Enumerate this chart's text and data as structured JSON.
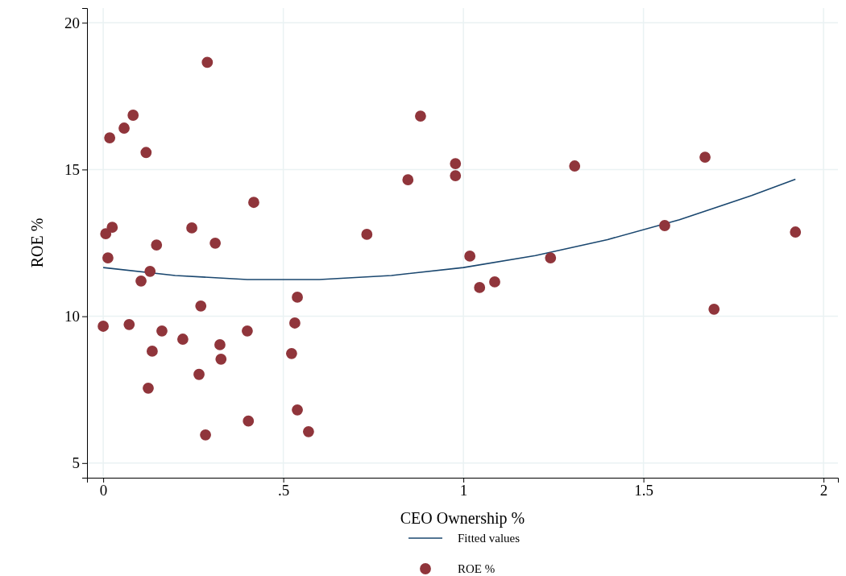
{
  "chart_data": {
    "type": "scatter",
    "xlabel": "CEO Ownership %",
    "ylabel": "ROE %",
    "xlim": [
      -0.045,
      2.04
    ],
    "ylim": [
      4.5,
      20.5
    ],
    "xticks": [
      0,
      {
        "value": 0.5,
        "label": ".5"
      },
      1,
      1.5,
      2
    ],
    "yticks": [
      5,
      10,
      15,
      20
    ],
    "grid": true,
    "legend": "bottom",
    "marker": "circle",
    "series": [
      {
        "name": "Fitted values",
        "type": "line",
        "color": "#1a476f",
        "line_style": "solid",
        "marker": "none",
        "x": [
          0,
          0.2,
          0.4,
          0.6,
          0.8,
          1.0,
          1.2,
          1.4,
          1.6,
          1.8,
          1.922
        ],
        "values": [
          11.66,
          11.39,
          11.25,
          11.25,
          11.39,
          11.66,
          12.07,
          12.61,
          13.29,
          14.11,
          14.67
        ]
      },
      {
        "name": "ROE %",
        "color": "#90353b",
        "x": [
          0,
          0.007,
          0.013,
          0.018,
          0.025,
          0.058,
          0.072,
          0.083,
          0.105,
          0.119,
          0.125,
          0.13,
          0.136,
          0.148,
          0.163,
          0.221,
          0.246,
          0.266,
          0.271,
          0.284,
          0.289,
          0.311,
          0.324,
          0.327,
          0.4,
          0.403,
          0.418,
          0.523,
          0.532,
          0.539,
          0.539,
          0.57,
          0.732,
          0.846,
          0.881,
          0.978,
          0.978,
          1.018,
          1.045,
          1.087,
          1.242,
          1.309,
          1.559,
          1.671,
          1.696,
          1.922
        ],
        "values": [
          9.66,
          12.81,
          11.99,
          16.08,
          13.03,
          16.41,
          9.72,
          16.85,
          11.2,
          15.58,
          7.55,
          11.53,
          8.81,
          12.43,
          9.5,
          9.22,
          13.01,
          8.02,
          10.35,
          5.96,
          18.65,
          12.49,
          9.03,
          8.54,
          9.5,
          6.43,
          13.88,
          8.73,
          9.77,
          10.65,
          6.81,
          6.07,
          12.79,
          14.65,
          16.82,
          15.2,
          14.79,
          12.05,
          10.98,
          11.17,
          11.99,
          15.12,
          13.09,
          15.42,
          10.24,
          12.87
        ]
      }
    ]
  }
}
